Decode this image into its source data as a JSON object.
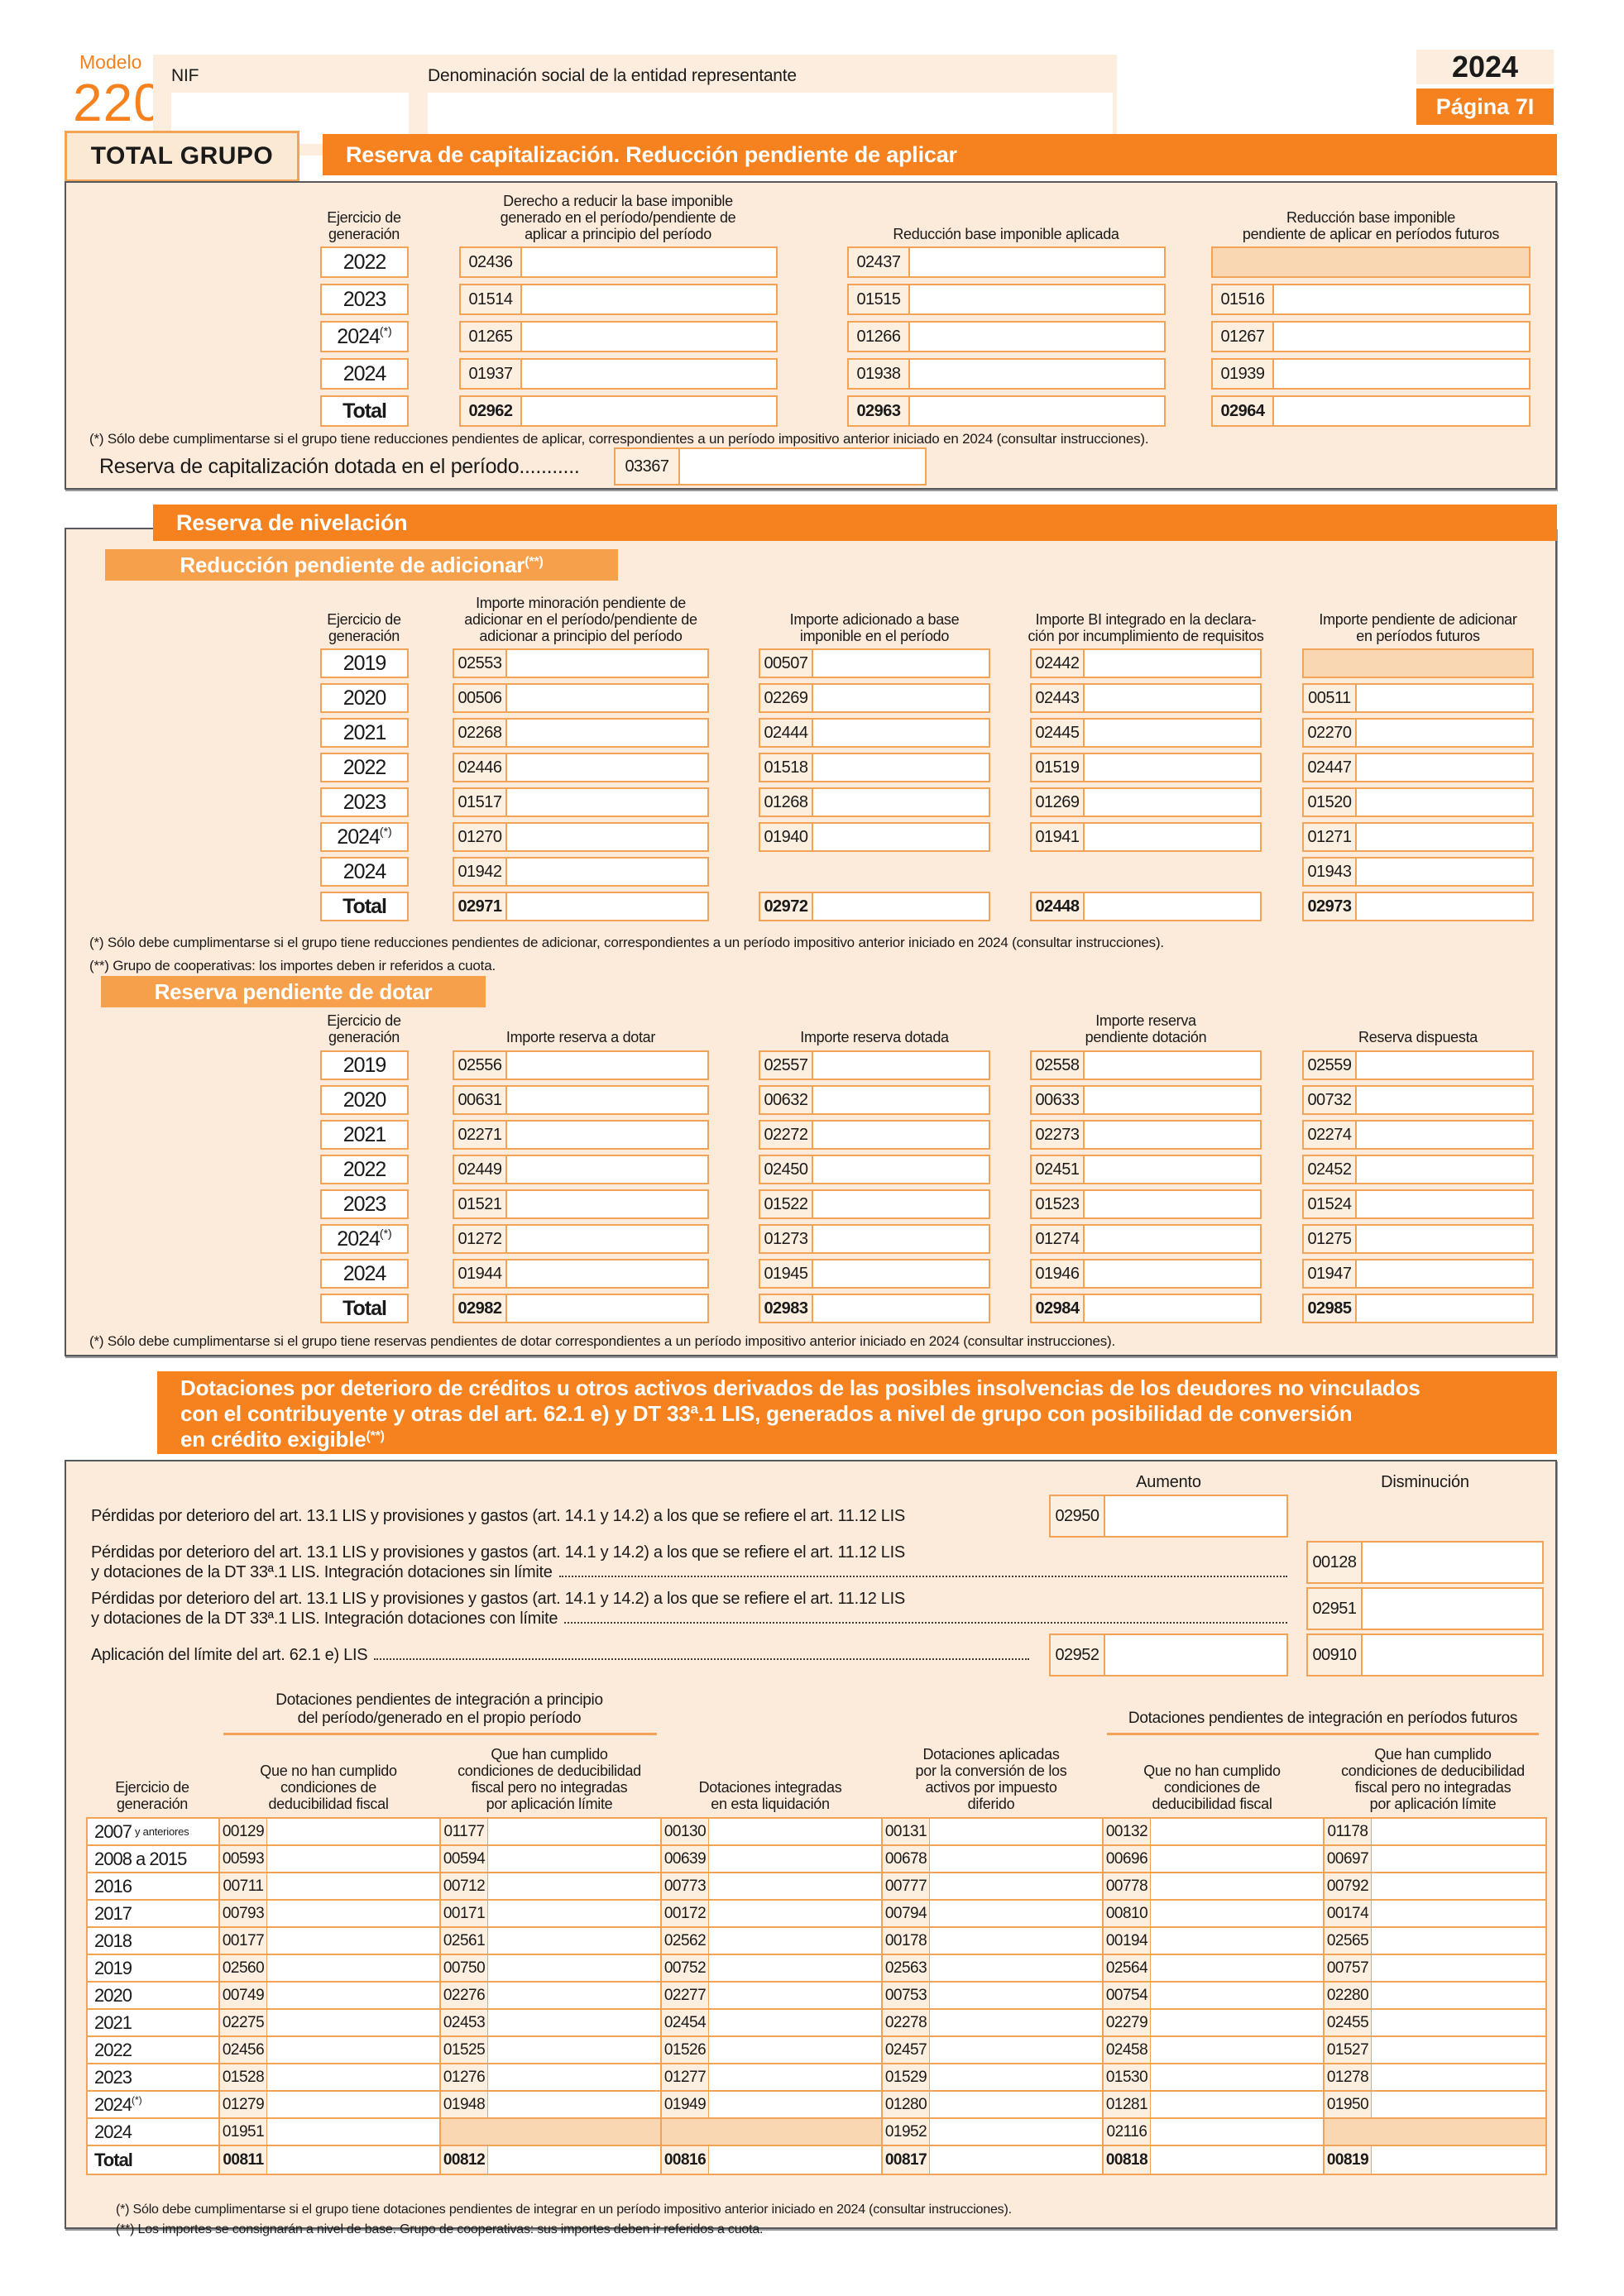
{
  "colors": {
    "accent_orange": "#F5811F",
    "sub_banner_orange": "#F7A04C",
    "container_peach": "#FCEADA",
    "shaded_cell": "#FAD7B3",
    "field_border": "#F2A355"
  },
  "header": {
    "modelo_label": "Modelo",
    "modelo_number": "220",
    "nif_label": "NIF",
    "denominacion_label": "Denominación social de la entidad representante",
    "nif_value": "",
    "denominacion_value": "",
    "year": "2024",
    "page_label": "Página 7I"
  },
  "total_grupo_label": "TOTAL GRUPO",
  "sections": {
    "capitalizacion": {
      "title": "Reserva de capitalización. Reducción pendiente de aplicar",
      "col_headers": [
        "Ejercicio de\ngeneración",
        "Derecho a reducir la base imponible\ngenerado en el período/pendiente de\naplicar a principio del período",
        "Reducción base imponible aplicada",
        "Reducción base imponible\npendiente de aplicar en períodos futuros"
      ],
      "rows": [
        {
          "year": "2022",
          "codes": [
            "02436",
            "02437",
            "SHADED"
          ]
        },
        {
          "year": "2023",
          "codes": [
            "01514",
            "01515",
            "01516"
          ]
        },
        {
          "year": "2024",
          "sup": "(*)",
          "codes": [
            "01265",
            "01266",
            "01267"
          ]
        },
        {
          "year": "2024",
          "codes": [
            "01937",
            "01938",
            "01939"
          ]
        },
        {
          "year": "Total",
          "total": true,
          "codes": [
            "02962",
            "02963",
            "02964"
          ]
        }
      ],
      "footnote": "(*) Sólo debe cumplimentarse si el grupo tiene reducciones pendientes de aplicar, correspondientes a un período impositivo anterior iniciado en 2024 (consultar instrucciones).",
      "dotada_label": "Reserva de capitalización dotada en el período...........",
      "dotada_code": "03367"
    },
    "nivelacion": {
      "title": "Reserva de nivelación",
      "sub_adicionar": {
        "title": "Reducción pendiente de adicionar",
        "title_sup": "(**)",
        "col_headers": [
          "Ejercicio de\ngeneración",
          "Importe minoración pendiente de\nadicionar en el período/pendiente de\nadicionar a principio del período",
          "Importe adicionado a base\nimponible en el período",
          "Importe BI integrado en la declara-\nción por incumplimiento de requisitos",
          "Importe pendiente de adicionar\nen períodos futuros"
        ],
        "rows": [
          {
            "year": "2019",
            "codes": [
              "02553",
              "00507",
              "02442",
              "SHADED"
            ]
          },
          {
            "year": "2020",
            "codes": [
              "00506",
              "02269",
              "02443",
              "00511"
            ]
          },
          {
            "year": "2021",
            "codes": [
              "02268",
              "02444",
              "02445",
              "02270"
            ]
          },
          {
            "year": "2022",
            "codes": [
              "02446",
              "01518",
              "01519",
              "02447"
            ]
          },
          {
            "year": "2023",
            "codes": [
              "01517",
              "01268",
              "01269",
              "01520"
            ]
          },
          {
            "year": "2024",
            "sup": "(*)",
            "codes": [
              "01270",
              "01940",
              "01941",
              "01271"
            ]
          },
          {
            "year": "2024",
            "codes": [
              "01942",
              null,
              null,
              "01943"
            ]
          },
          {
            "year": "Total",
            "total": true,
            "codes": [
              "02971",
              "02972",
              "02448",
              "02973"
            ]
          }
        ],
        "footnotes": [
          "(*)   Sólo debe cumplimentarse si el grupo tiene reducciones pendientes de adicionar, correspondientes a un período impositivo anterior iniciado en 2024 (consultar instrucciones).",
          "(**)  Grupo de cooperativas: los importes deben ir referidos a cuota."
        ]
      },
      "sub_dotar": {
        "title": "Reserva pendiente de dotar",
        "col_headers": [
          "Ejercicio de\ngeneración",
          "Importe reserva a dotar",
          "Importe reserva dotada",
          "Importe reserva\npendiente dotación",
          "Reserva dispuesta"
        ],
        "rows": [
          {
            "year": "2019",
            "codes": [
              "02556",
              "02557",
              "02558",
              "02559"
            ]
          },
          {
            "year": "2020",
            "codes": [
              "00631",
              "00632",
              "00633",
              "00732"
            ]
          },
          {
            "year": "2021",
            "codes": [
              "02271",
              "02272",
              "02273",
              "02274"
            ]
          },
          {
            "year": "2022",
            "codes": [
              "02449",
              "02450",
              "02451",
              "02452"
            ]
          },
          {
            "year": "2023",
            "codes": [
              "01521",
              "01522",
              "01523",
              "01524"
            ]
          },
          {
            "year": "2024",
            "sup": "(*)",
            "codes": [
              "01272",
              "01273",
              "01274",
              "01275"
            ]
          },
          {
            "year": "2024",
            "codes": [
              "01944",
              "01945",
              "01946",
              "01947"
            ]
          },
          {
            "year": "Total",
            "total": true,
            "codes": [
              "02982",
              "02983",
              "02984",
              "02985"
            ]
          }
        ],
        "footnote": "(*) Sólo debe cumplimentarse si el grupo tiene reservas pendientes de dotar correspondientes a un período impositivo anterior iniciado en 2024 (consultar instrucciones)."
      }
    },
    "dotaciones": {
      "title_lines": [
        "Dotaciones por deterioro de créditos u otros activos derivados de las posibles insolvencias de los deudores no vinculados",
        "con el contribuyente y otras del art. 62.1 e) y DT 33ª.1 LIS, generados a nivel de grupo con posibilidad de conversión",
        "en crédito exigible"
      ],
      "title_sup": "(**)",
      "aumento_label": "Aumento",
      "disminucion_label": "Disminución",
      "lines": [
        {
          "text_lines": [
            "Pérdidas por deterioro del art. 13.1 LIS y provisiones y gastos (art. 14.1 y 14.2) a los que se refiere el art. 11.12 LIS"
          ],
          "leader": false,
          "aumento": "02950",
          "disminucion": null
        },
        {
          "text_lines": [
            "Pérdidas por deterioro del art. 13.1 LIS y provisiones y gastos (art. 14.1 y 14.2) a los que se refiere el art. 11.12 LIS",
            "y dotaciones de la DT 33ª.1 LIS. Integración dotaciones sin límite"
          ],
          "leader": true,
          "aumento": null,
          "disminucion": "00128"
        },
        {
          "text_lines": [
            "Pérdidas por deterioro del art. 13.1 LIS y provisiones y gastos (art. 14.1 y 14.2) a los que se refiere el art. 11.12 LIS",
            "y dotaciones de la DT 33ª.1 LIS. Integración dotaciones con límite"
          ],
          "leader": true,
          "aumento": null,
          "disminucion": "02951"
        },
        {
          "text_lines": [
            "Aplicación del límite del art. 62.1 e) LIS"
          ],
          "leader": true,
          "aumento": "02952",
          "disminucion": "00910"
        }
      ],
      "group_left": "Dotaciones pendientes de integración a principio\ndel período/generado en el propio período",
      "group_right": "Dotaciones pendientes de integración en períodos futuros",
      "col_headers": [
        "Ejercicio de\ngeneración",
        "Que no han cumplido\ncondiciones de\ndeducibilidad fiscal",
        "Que han cumplido\ncondiciones de deducibilidad\nfiscal pero no integradas\npor aplicación límite",
        "Dotaciones integradas\nen esta liquidación",
        "Dotaciones aplicadas\npor la conversión de los\nactivos por impuesto\ndiferido",
        "Que no han cumplido\ncondiciones de\ndeducibilidad fiscal",
        "Que han cumplido\ncondiciones de deducibilidad\nfiscal pero no integradas\npor aplicación límite"
      ],
      "rows": [
        {
          "year": "2007",
          "suffix": "y anteriores",
          "codes": [
            "00129",
            "01177",
            "00130",
            "00131",
            "00132",
            "01178"
          ]
        },
        {
          "year": "2008 a 2015",
          "codes": [
            "00593",
            "00594",
            "00639",
            "00678",
            "00696",
            "00697"
          ]
        },
        {
          "year": "2016",
          "codes": [
            "00711",
            "00712",
            "00773",
            "00777",
            "00778",
            "00792"
          ]
        },
        {
          "year": "2017",
          "codes": [
            "00793",
            "00171",
            "00172",
            "00794",
            "00810",
            "00174"
          ]
        },
        {
          "year": "2018",
          "codes": [
            "00177",
            "02561",
            "02562",
            "00178",
            "00194",
            "02565"
          ]
        },
        {
          "year": "2019",
          "codes": [
            "02560",
            "00750",
            "00752",
            "02563",
            "02564",
            "00757"
          ]
        },
        {
          "year": "2020",
          "codes": [
            "00749",
            "02276",
            "02277",
            "00753",
            "00754",
            "02280"
          ]
        },
        {
          "year": "2021",
          "codes": [
            "02275",
            "02453",
            "02454",
            "02278",
            "02279",
            "02455"
          ]
        },
        {
          "year": "2022",
          "codes": [
            "02456",
            "01525",
            "01526",
            "02457",
            "02458",
            "01527"
          ]
        },
        {
          "year": "2023",
          "codes": [
            "01528",
            "01276",
            "01277",
            "01529",
            "01530",
            "01278"
          ]
        },
        {
          "year": "2024",
          "sup": "(*)",
          "codes": [
            "01279",
            "01948",
            "01949",
            "01280",
            "01281",
            "01950"
          ]
        },
        {
          "year": "2024",
          "codes": [
            "01951",
            "SHADED",
            "SHADED",
            "01952",
            "02116",
            "SHADED"
          ]
        },
        {
          "year": "Total",
          "total": true,
          "codes": [
            "00811",
            "00812",
            "00816",
            "00817",
            "00818",
            "00819"
          ]
        }
      ],
      "footnotes": [
        "(*) Sólo debe cumplimentarse si el grupo tiene dotaciones pendientes de integrar en un período impositivo anterior iniciado en 2024 (consultar instrucciones).",
        "(**) Los importes se consignarán a nivel de base. Grupo de cooperativas: sus importes deben ir referidos a cuota."
      ]
    }
  }
}
